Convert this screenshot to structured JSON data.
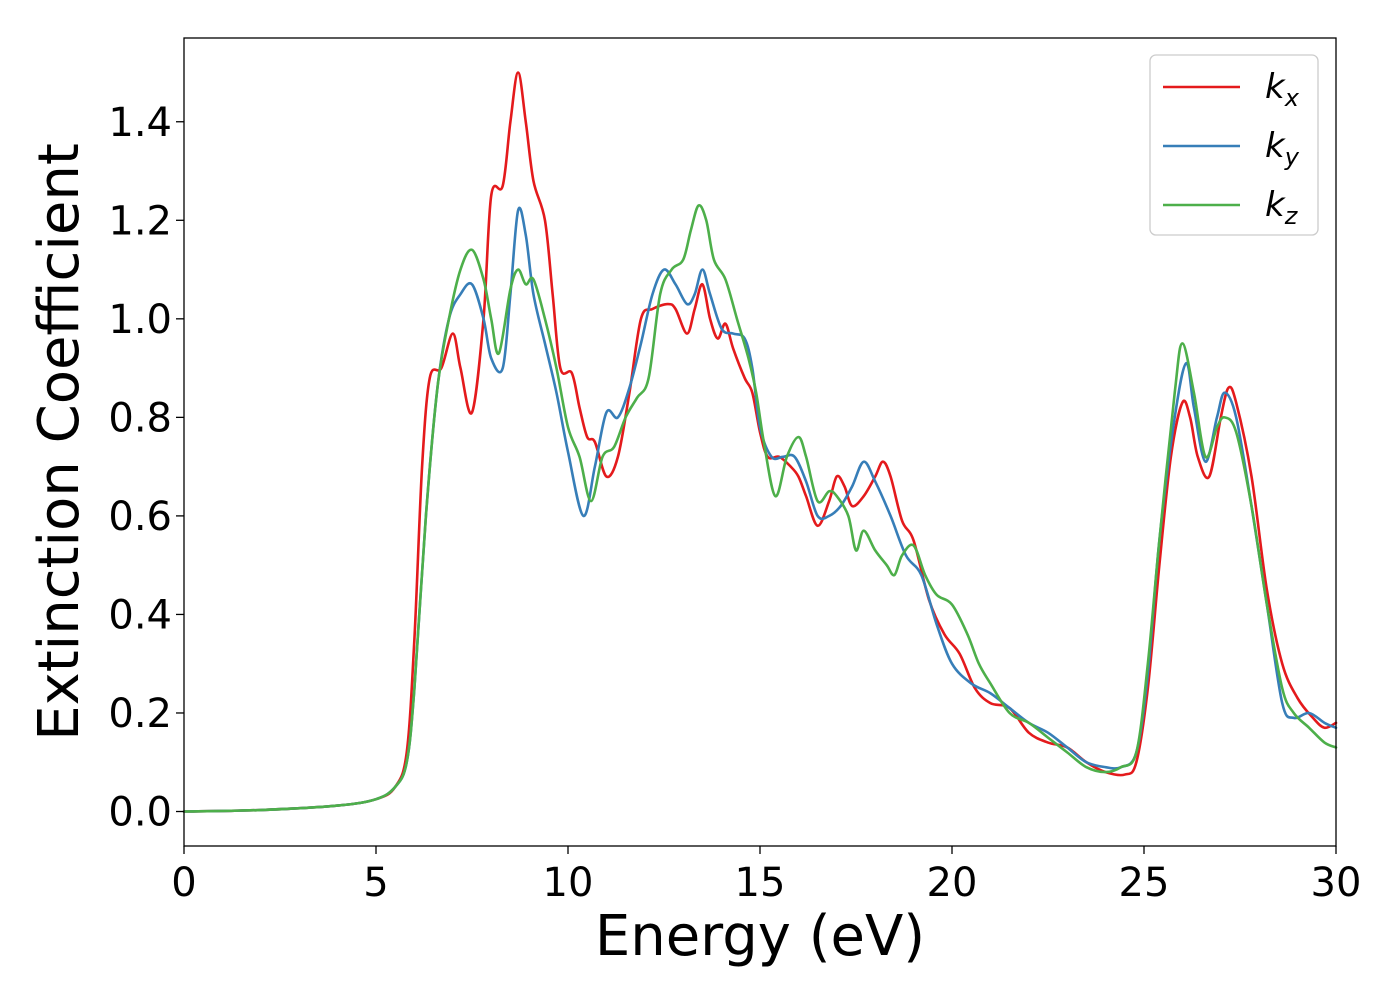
{
  "chart_data": {
    "type": "line",
    "title": "",
    "xlabel": "Energy (eV)",
    "ylabel": "Extinction Coefficient",
    "xlim": [
      0,
      30
    ],
    "ylim": [
      -0.07,
      1.57
    ],
    "xticks": [
      0,
      5,
      10,
      15,
      20,
      25,
      30
    ],
    "yticks": [
      0.0,
      0.2,
      0.4,
      0.6,
      0.8,
      1.0,
      1.2,
      1.4
    ],
    "grid": false,
    "legend_position": "top-right",
    "series": [
      {
        "name": "k_x",
        "label_main": "k",
        "label_sub": "x",
        "color": "#e41a1c",
        "points": [
          [
            0,
            0
          ],
          [
            2,
            0.003
          ],
          [
            4,
            0.012
          ],
          [
            5,
            0.025
          ],
          [
            5.5,
            0.05
          ],
          [
            5.8,
            0.12
          ],
          [
            6.0,
            0.35
          ],
          [
            6.2,
            0.7
          ],
          [
            6.4,
            0.88
          ],
          [
            6.7,
            0.9
          ],
          [
            7.0,
            0.97
          ],
          [
            7.2,
            0.9
          ],
          [
            7.5,
            0.81
          ],
          [
            7.8,
            1.0
          ],
          [
            8.0,
            1.25
          ],
          [
            8.3,
            1.27
          ],
          [
            8.5,
            1.4
          ],
          [
            8.7,
            1.5
          ],
          [
            8.9,
            1.4
          ],
          [
            9.1,
            1.28
          ],
          [
            9.4,
            1.2
          ],
          [
            9.6,
            1.05
          ],
          [
            9.8,
            0.9
          ],
          [
            10.1,
            0.89
          ],
          [
            10.3,
            0.82
          ],
          [
            10.5,
            0.76
          ],
          [
            10.7,
            0.75
          ],
          [
            11.0,
            0.68
          ],
          [
            11.3,
            0.72
          ],
          [
            11.6,
            0.85
          ],
          [
            11.9,
            1.0
          ],
          [
            12.2,
            1.02
          ],
          [
            12.6,
            1.03
          ],
          [
            12.8,
            1.02
          ],
          [
            13.1,
            0.97
          ],
          [
            13.3,
            1.02
          ],
          [
            13.5,
            1.07
          ],
          [
            13.7,
            1.0
          ],
          [
            13.9,
            0.96
          ],
          [
            14.1,
            0.99
          ],
          [
            14.3,
            0.94
          ],
          [
            14.6,
            0.88
          ],
          [
            14.8,
            0.85
          ],
          [
            15.0,
            0.77
          ],
          [
            15.2,
            0.72
          ],
          [
            15.5,
            0.72
          ],
          [
            15.8,
            0.7
          ],
          [
            16.0,
            0.68
          ],
          [
            16.2,
            0.64
          ],
          [
            16.5,
            0.58
          ],
          [
            16.8,
            0.63
          ],
          [
            17.0,
            0.68
          ],
          [
            17.2,
            0.66
          ],
          [
            17.4,
            0.62
          ],
          [
            17.7,
            0.64
          ],
          [
            18.0,
            0.68
          ],
          [
            18.2,
            0.71
          ],
          [
            18.4,
            0.68
          ],
          [
            18.7,
            0.59
          ],
          [
            19.0,
            0.55
          ],
          [
            19.4,
            0.43
          ],
          [
            19.8,
            0.36
          ],
          [
            20.2,
            0.32
          ],
          [
            20.6,
            0.25
          ],
          [
            21.0,
            0.22
          ],
          [
            21.5,
            0.21
          ],
          [
            22.0,
            0.16
          ],
          [
            22.5,
            0.14
          ],
          [
            23.0,
            0.13
          ],
          [
            23.5,
            0.1
          ],
          [
            24.0,
            0.08
          ],
          [
            24.5,
            0.075
          ],
          [
            24.8,
            0.1
          ],
          [
            25.1,
            0.25
          ],
          [
            25.4,
            0.5
          ],
          [
            25.7,
            0.72
          ],
          [
            26.0,
            0.83
          ],
          [
            26.2,
            0.8
          ],
          [
            26.4,
            0.72
          ],
          [
            26.7,
            0.68
          ],
          [
            27.0,
            0.8
          ],
          [
            27.2,
            0.86
          ],
          [
            27.4,
            0.83
          ],
          [
            27.8,
            0.68
          ],
          [
            28.2,
            0.45
          ],
          [
            28.6,
            0.3
          ],
          [
            29.0,
            0.23
          ],
          [
            29.4,
            0.19
          ],
          [
            29.7,
            0.17
          ],
          [
            30.0,
            0.18
          ]
        ]
      },
      {
        "name": "k_y",
        "label_main": "k",
        "label_sub": "y",
        "color": "#377eb8",
        "points": [
          [
            0,
            0
          ],
          [
            2,
            0.003
          ],
          [
            4,
            0.012
          ],
          [
            5,
            0.025
          ],
          [
            5.5,
            0.05
          ],
          [
            5.8,
            0.1
          ],
          [
            6.0,
            0.25
          ],
          [
            6.3,
            0.6
          ],
          [
            6.6,
            0.86
          ],
          [
            6.9,
            1.0
          ],
          [
            7.2,
            1.05
          ],
          [
            7.5,
            1.07
          ],
          [
            7.8,
            1.0
          ],
          [
            8.0,
            0.92
          ],
          [
            8.3,
            0.9
          ],
          [
            8.5,
            1.05
          ],
          [
            8.7,
            1.22
          ],
          [
            8.9,
            1.17
          ],
          [
            9.1,
            1.05
          ],
          [
            9.4,
            0.95
          ],
          [
            9.7,
            0.85
          ],
          [
            10.0,
            0.73
          ],
          [
            10.4,
            0.6
          ],
          [
            10.7,
            0.7
          ],
          [
            11.0,
            0.81
          ],
          [
            11.3,
            0.8
          ],
          [
            11.6,
            0.86
          ],
          [
            11.9,
            0.95
          ],
          [
            12.2,
            1.05
          ],
          [
            12.5,
            1.1
          ],
          [
            12.8,
            1.07
          ],
          [
            13.1,
            1.03
          ],
          [
            13.3,
            1.05
          ],
          [
            13.5,
            1.1
          ],
          [
            13.7,
            1.05
          ],
          [
            14.0,
            0.98
          ],
          [
            14.3,
            0.97
          ],
          [
            14.6,
            0.96
          ],
          [
            14.8,
            0.9
          ],
          [
            15.0,
            0.78
          ],
          [
            15.3,
            0.72
          ],
          [
            15.6,
            0.72
          ],
          [
            15.9,
            0.72
          ],
          [
            16.2,
            0.67
          ],
          [
            16.5,
            0.6
          ],
          [
            16.8,
            0.6
          ],
          [
            17.1,
            0.62
          ],
          [
            17.4,
            0.66
          ],
          [
            17.7,
            0.71
          ],
          [
            18.0,
            0.67
          ],
          [
            18.4,
            0.6
          ],
          [
            18.8,
            0.52
          ],
          [
            19.2,
            0.48
          ],
          [
            19.6,
            0.38
          ],
          [
            20.0,
            0.3
          ],
          [
            20.5,
            0.26
          ],
          [
            21.0,
            0.24
          ],
          [
            21.5,
            0.21
          ],
          [
            22.0,
            0.18
          ],
          [
            22.5,
            0.16
          ],
          [
            23.0,
            0.13
          ],
          [
            23.5,
            0.1
          ],
          [
            24.0,
            0.09
          ],
          [
            24.4,
            0.09
          ],
          [
            24.8,
            0.12
          ],
          [
            25.1,
            0.28
          ],
          [
            25.4,
            0.55
          ],
          [
            25.8,
            0.8
          ],
          [
            26.1,
            0.91
          ],
          [
            26.3,
            0.82
          ],
          [
            26.6,
            0.71
          ],
          [
            26.9,
            0.8
          ],
          [
            27.1,
            0.85
          ],
          [
            27.4,
            0.8
          ],
          [
            27.8,
            0.62
          ],
          [
            28.2,
            0.42
          ],
          [
            28.6,
            0.22
          ],
          [
            28.9,
            0.19
          ],
          [
            29.3,
            0.2
          ],
          [
            29.7,
            0.18
          ],
          [
            30.0,
            0.17
          ]
        ]
      },
      {
        "name": "k_z",
        "label_main": "k",
        "label_sub": "z",
        "color": "#4daf4a",
        "points": [
          [
            0,
            0
          ],
          [
            2,
            0.003
          ],
          [
            4,
            0.012
          ],
          [
            5,
            0.025
          ],
          [
            5.5,
            0.05
          ],
          [
            5.8,
            0.1
          ],
          [
            6.0,
            0.25
          ],
          [
            6.3,
            0.6
          ],
          [
            6.6,
            0.86
          ],
          [
            6.9,
            1.0
          ],
          [
            7.2,
            1.1
          ],
          [
            7.5,
            1.14
          ],
          [
            7.8,
            1.08
          ],
          [
            8.0,
            1.0
          ],
          [
            8.2,
            0.93
          ],
          [
            8.5,
            1.06
          ],
          [
            8.7,
            1.1
          ],
          [
            8.9,
            1.07
          ],
          [
            9.1,
            1.08
          ],
          [
            9.4,
            1.0
          ],
          [
            9.7,
            0.9
          ],
          [
            10.0,
            0.78
          ],
          [
            10.3,
            0.72
          ],
          [
            10.6,
            0.63
          ],
          [
            10.9,
            0.72
          ],
          [
            11.2,
            0.74
          ],
          [
            11.5,
            0.8
          ],
          [
            11.8,
            0.84
          ],
          [
            12.1,
            0.88
          ],
          [
            12.4,
            1.05
          ],
          [
            12.7,
            1.1
          ],
          [
            13.0,
            1.12
          ],
          [
            13.2,
            1.18
          ],
          [
            13.4,
            1.23
          ],
          [
            13.6,
            1.2
          ],
          [
            13.8,
            1.12
          ],
          [
            14.1,
            1.08
          ],
          [
            14.4,
            1.0
          ],
          [
            14.7,
            0.92
          ],
          [
            14.9,
            0.85
          ],
          [
            15.1,
            0.75
          ],
          [
            15.4,
            0.64
          ],
          [
            15.7,
            0.72
          ],
          [
            16.0,
            0.76
          ],
          [
            16.2,
            0.72
          ],
          [
            16.5,
            0.63
          ],
          [
            16.8,
            0.65
          ],
          [
            17.0,
            0.64
          ],
          [
            17.3,
            0.6
          ],
          [
            17.5,
            0.53
          ],
          [
            17.7,
            0.57
          ],
          [
            18.0,
            0.53
          ],
          [
            18.3,
            0.5
          ],
          [
            18.5,
            0.48
          ],
          [
            18.7,
            0.52
          ],
          [
            19.0,
            0.54
          ],
          [
            19.3,
            0.48
          ],
          [
            19.6,
            0.44
          ],
          [
            20.0,
            0.42
          ],
          [
            20.4,
            0.36
          ],
          [
            20.7,
            0.3
          ],
          [
            21.0,
            0.26
          ],
          [
            21.5,
            0.2
          ],
          [
            22.0,
            0.18
          ],
          [
            22.5,
            0.15
          ],
          [
            23.0,
            0.12
          ],
          [
            23.5,
            0.09
          ],
          [
            24.0,
            0.08
          ],
          [
            24.4,
            0.09
          ],
          [
            24.8,
            0.12
          ],
          [
            25.1,
            0.3
          ],
          [
            25.4,
            0.55
          ],
          [
            25.8,
            0.85
          ],
          [
            26.0,
            0.95
          ],
          [
            26.3,
            0.85
          ],
          [
            26.6,
            0.72
          ],
          [
            26.9,
            0.78
          ],
          [
            27.1,
            0.8
          ],
          [
            27.4,
            0.77
          ],
          [
            27.8,
            0.62
          ],
          [
            28.2,
            0.42
          ],
          [
            28.6,
            0.25
          ],
          [
            28.9,
            0.2
          ],
          [
            29.3,
            0.17
          ],
          [
            29.7,
            0.14
          ],
          [
            30.0,
            0.13
          ]
        ]
      }
    ]
  }
}
